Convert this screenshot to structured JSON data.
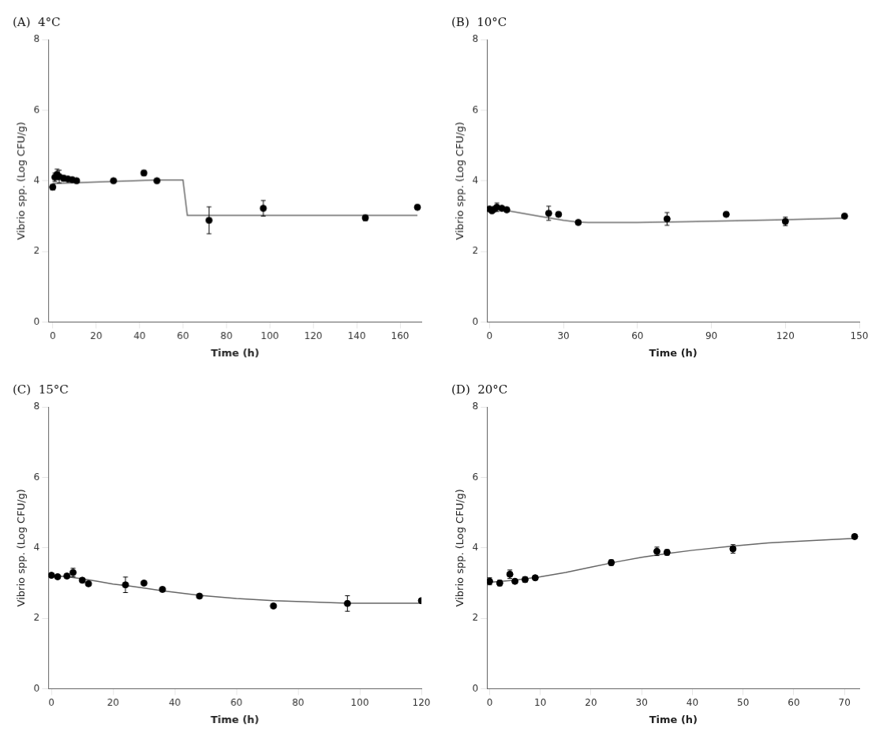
{
  "chart_data": [
    {
      "type": "scatter",
      "title": "(A)  4°C",
      "x_label": "Time (h)",
      "y_label": "Vibrio spp. (Log CFU/g)",
      "xlim": [
        -2,
        170
      ],
      "ylim": [
        0,
        8
      ],
      "xticks": [
        0,
        20,
        40,
        60,
        80,
        100,
        120,
        140,
        160
      ],
      "yticks": [
        0,
        2,
        4,
        6,
        8
      ],
      "grid": false,
      "series": [
        {
          "type": "line",
          "color": "#666666",
          "line_style": "solid",
          "x": [
            0,
            48,
            60,
            62,
            168
          ],
          "values": [
            3.92,
            4.02,
            4.02,
            3.02,
            3.02
          ]
        },
        {
          "type": "scatter",
          "color": "black",
          "marker": "circle",
          "x": [
            0,
            1,
            2,
            3,
            5,
            7,
            9,
            11,
            28,
            42,
            48,
            72,
            97,
            144,
            168
          ],
          "values": [
            3.82,
            4.1,
            4.18,
            4.12,
            4.07,
            4.05,
            4.03,
            4.0,
            4.0,
            4.22,
            4.0,
            2.88,
            3.22,
            2.95,
            3.25
          ],
          "errors": [
            0.08,
            0.12,
            0.15,
            0.18,
            0.08,
            0.06,
            0.05,
            0.05,
            0.05,
            0.08,
            0.05,
            0.38,
            0.22,
            0.08,
            0.05
          ]
        }
      ]
    },
    {
      "type": "scatter",
      "title": "(B)  10°C",
      "x_label": "Time (h)",
      "y_label": "Vibrio spp. (Log CFU/g)",
      "xlim": [
        -1,
        150
      ],
      "ylim": [
        0,
        8
      ],
      "xticks": [
        0,
        30,
        60,
        90,
        120,
        150
      ],
      "yticks": [
        0,
        2,
        4,
        6,
        8
      ],
      "grid": false,
      "series": [
        {
          "type": "line",
          "color": "#666666",
          "line_style": "solid",
          "x": [
            0,
            5,
            10,
            20,
            30,
            36,
            40,
            60,
            80,
            100,
            120,
            144
          ],
          "values": [
            3.2,
            3.18,
            3.12,
            3.0,
            2.88,
            2.83,
            2.82,
            2.82,
            2.84,
            2.87,
            2.9,
            2.94
          ]
        },
        {
          "type": "scatter",
          "color": "black",
          "marker": "circle",
          "x": [
            0,
            1,
            2,
            3,
            5,
            7,
            24,
            28,
            36,
            72,
            96,
            120,
            144
          ],
          "values": [
            3.2,
            3.15,
            3.2,
            3.25,
            3.22,
            3.18,
            3.08,
            3.05,
            2.82,
            2.92,
            3.05,
            2.85,
            3.0
          ],
          "errors": [
            0.05,
            0.05,
            0.05,
            0.12,
            0.05,
            0.05,
            0.2,
            0.05,
            0.05,
            0.18,
            0.05,
            0.12,
            0.05
          ]
        }
      ]
    },
    {
      "type": "scatter",
      "title": "(C)  15°C",
      "x_label": "Time (h)",
      "y_label": "Vibrio spp. (Log CFU/g)",
      "xlim": [
        -1,
        120
      ],
      "ylim": [
        0,
        8
      ],
      "xticks": [
        0,
        20,
        40,
        60,
        80,
        100,
        120
      ],
      "yticks": [
        0,
        2,
        4,
        6,
        8
      ],
      "grid": false,
      "series": [
        {
          "type": "line",
          "color": "#666666",
          "line_style": "solid",
          "x": [
            0,
            5,
            10,
            15,
            20,
            25,
            30,
            36,
            48,
            60,
            72,
            96,
            120
          ],
          "values": [
            3.22,
            3.18,
            3.12,
            3.05,
            2.97,
            2.92,
            2.86,
            2.78,
            2.65,
            2.56,
            2.5,
            2.43,
            2.43
          ]
        },
        {
          "type": "scatter",
          "color": "black",
          "marker": "circle",
          "x": [
            0,
            2,
            5,
            7,
            10,
            12,
            24,
            30,
            36,
            48,
            72,
            96,
            120
          ],
          "values": [
            3.22,
            3.18,
            3.2,
            3.3,
            3.08,
            2.98,
            2.95,
            3.0,
            2.82,
            2.63,
            2.35,
            2.42,
            2.5
          ],
          "errors": [
            0.05,
            0.05,
            0.05,
            0.12,
            0.05,
            0.05,
            0.22,
            0.05,
            0.05,
            0.05,
            0.05,
            0.22,
            0.05
          ]
        }
      ]
    },
    {
      "type": "scatter",
      "title": "(D)  20°C",
      "x_label": "Time (h)",
      "y_label": "Vibrio spp. (Log CFU/g)",
      "xlim": [
        -0.5,
        73
      ],
      "ylim": [
        0,
        8
      ],
      "xticks": [
        0,
        10,
        20,
        30,
        40,
        50,
        60,
        70
      ],
      "yticks": [
        0,
        2,
        4,
        6,
        8
      ],
      "grid": false,
      "series": [
        {
          "type": "line",
          "color": "#666666",
          "line_style": "solid",
          "x": [
            0,
            5,
            10,
            15,
            20,
            25,
            30,
            35,
            40,
            48,
            55,
            60,
            72
          ],
          "values": [
            3.02,
            3.08,
            3.18,
            3.3,
            3.45,
            3.6,
            3.73,
            3.84,
            3.93,
            4.05,
            4.14,
            4.18,
            4.27
          ]
        },
        {
          "type": "scatter",
          "color": "black",
          "marker": "circle",
          "x": [
            0,
            2,
            4,
            5,
            7,
            9,
            24,
            33,
            35,
            48,
            72
          ],
          "values": [
            3.05,
            3.0,
            3.25,
            3.05,
            3.1,
            3.15,
            3.58,
            3.9,
            3.87,
            3.97,
            4.32
          ],
          "errors": [
            0.1,
            0.08,
            0.12,
            0.05,
            0.08,
            0.05,
            0.08,
            0.12,
            0.08,
            0.12,
            0.05
          ]
        }
      ]
    }
  ]
}
